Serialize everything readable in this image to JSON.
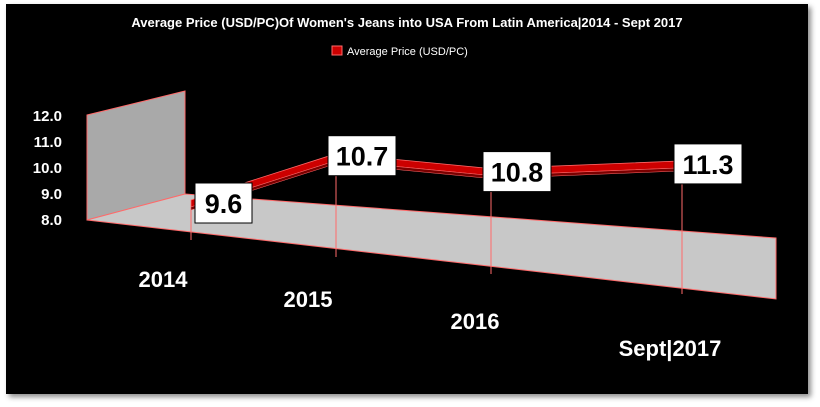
{
  "chart_data": {
    "type": "line",
    "title": "Average Price (USD/PC)Of Women's Jeans into USA From Latin America|2014 - Sept 2017",
    "categories": [
      "2014",
      "2015",
      "2016",
      "Sept|2017"
    ],
    "series": [
      {
        "name": "Average Price (USD/PC)",
        "values": [
          9.6,
          10.7,
          10.8,
          11.3
        ]
      }
    ],
    "data_labels": [
      "9.6",
      "10.7",
      "10.8",
      "11.3"
    ],
    "y_ticks": [
      "12.0",
      "11.0",
      "10.0",
      "9.0",
      "8.0"
    ],
    "ylim": [
      8.0,
      12.0
    ],
    "xlabel": "",
    "ylabel": "",
    "legend_position": "top",
    "grid": false,
    "colors": {
      "background": "#000000",
      "series": "#cc0000",
      "series_dark": "#7a0000",
      "floor": "#c8c8c8",
      "wall": "#a9a9a9",
      "edge": "#ff6a6a"
    }
  }
}
